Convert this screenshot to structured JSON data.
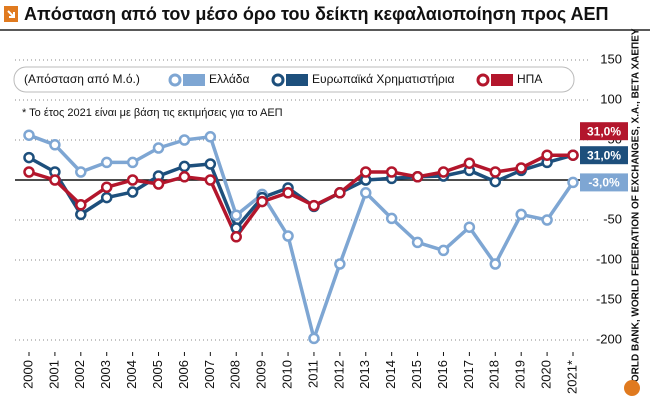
{
  "chart_data": {
    "type": "line",
    "title": "Απόσταση από τον μέσο όρο του δείκτη κεφαλαιοποίηση προς ΑΕΠ",
    "legend_title": "(Απόσταση από Μ.ό.)",
    "note": "* Το έτος 2021 είναι με βάση τις εκτιμήσεις για το ΑΕΠ",
    "source": "WORLD BANK, WORLD FEDERATION OF EXCHANGES, Χ.Α., BETA ΧΑΕΠΕΥ",
    "categories": [
      "2000",
      "2001",
      "2002",
      "2003",
      "2004",
      "2005",
      "2006",
      "2007",
      "2008",
      "2009",
      "2010",
      "2011",
      "2012",
      "2013",
      "2014",
      "2015",
      "2016",
      "2017",
      "2018",
      "2019",
      "2020",
      "2021*"
    ],
    "series": [
      {
        "name": "Ελλάδα",
        "color": "#7ea6d3",
        "values": [
          56,
          44,
          10,
          22,
          22,
          40,
          50,
          54,
          -44,
          -18,
          -70,
          -198,
          -105,
          -16,
          -48,
          -78,
          -88,
          -59,
          -105,
          -43,
          -50,
          -3
        ],
        "end_label": "-3,0%"
      },
      {
        "name": "Ευρωπαϊκά Χρηματιστήρια",
        "color": "#1d4f7c",
        "values": [
          28,
          10,
          -43,
          -22,
          -15,
          5,
          17,
          20,
          -60,
          -22,
          -10,
          -33,
          -16,
          0,
          2,
          4,
          5,
          12,
          -2,
          12,
          22,
          31
        ],
        "end_label": "31,0%"
      },
      {
        "name": "ΗΠΑ",
        "color": "#b3162c",
        "values": [
          10,
          0,
          -31,
          -9,
          0,
          -5,
          4,
          0,
          -71,
          -27,
          -16,
          -32,
          -16,
          10,
          10,
          4,
          10,
          21,
          10,
          15,
          31,
          31
        ],
        "end_label": "31,0%"
      }
    ],
    "ylim": [
      -215,
      165
    ],
    "yticks": [
      150,
      100,
      50,
      0,
      -50,
      -100,
      -150,
      -200
    ],
    "grid": true
  }
}
